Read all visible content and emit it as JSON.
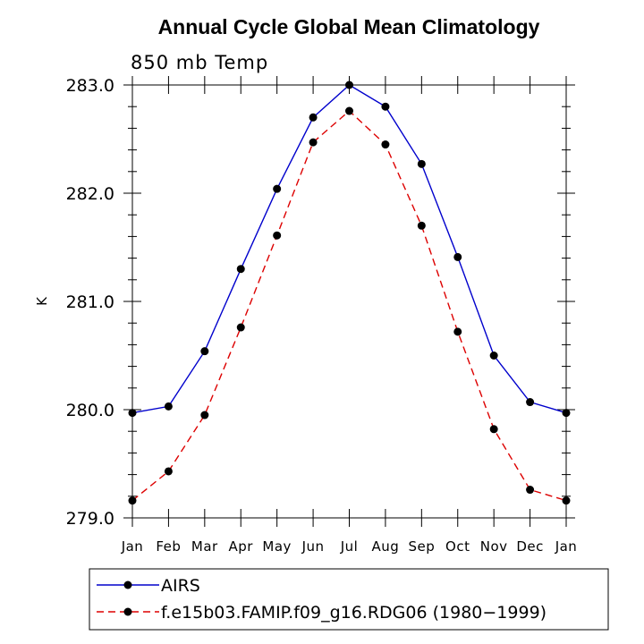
{
  "chart_data": {
    "type": "line",
    "title": "Annual Cycle Global Mean Climatology",
    "subtitle": "850 mb Temp",
    "ylabel": "K",
    "xlabel": "",
    "categories": [
      "Jan",
      "Feb",
      "Mar",
      "Apr",
      "May",
      "Jun",
      "Jul",
      "Aug",
      "Sep",
      "Oct",
      "Nov",
      "Dec",
      "Jan"
    ],
    "ylim": [
      279.0,
      283.0
    ],
    "yticks": [
      "279.0",
      "280.0",
      "281.0",
      "282.0",
      "283.0"
    ],
    "grid": false,
    "legend_position": "bottom",
    "series": [
      {
        "name": "AIRS",
        "color": "#0000cc",
        "dash": "solid",
        "values": [
          279.97,
          280.03,
          280.54,
          281.3,
          282.04,
          282.7,
          283.0,
          282.8,
          282.27,
          281.41,
          280.5,
          280.07,
          279.97
        ]
      },
      {
        "name": "f.e15b03.FAMIP.f09_g16.RDG06 (1980−1999)",
        "color": "#dd0000",
        "dash": "dashed",
        "values": [
          279.16,
          279.43,
          279.95,
          280.76,
          281.61,
          282.47,
          282.76,
          282.45,
          281.7,
          280.72,
          279.82,
          279.26,
          279.16
        ]
      }
    ]
  }
}
